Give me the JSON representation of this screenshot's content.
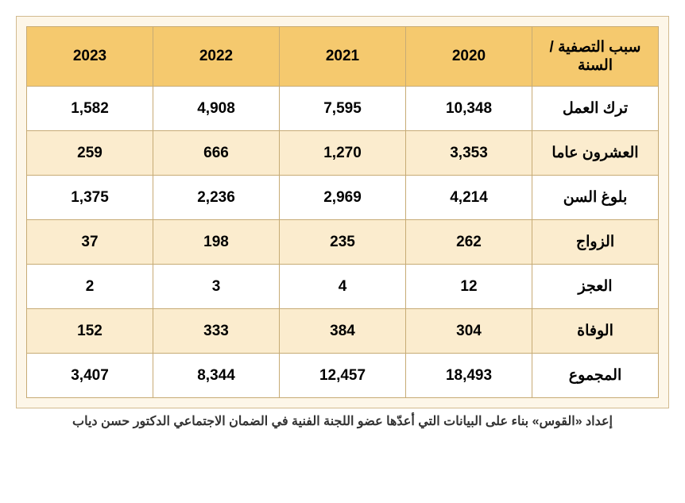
{
  "table": {
    "type": "table",
    "direction": "rtl-layout-but-columns-ltr",
    "header_bg": "#f5c96e",
    "row_bg": "#ffffff",
    "row_alt_bg": "#fbecce",
    "border_color": "#c7ab75",
    "container_bg": "#fdf6e8",
    "font_size": 19,
    "header_font_size": 19,
    "columns": [
      "2023",
      "2022",
      "2021",
      "2020",
      "سبب التصفية / السنة"
    ],
    "rows": [
      {
        "c0": "1,582",
        "c1": "4,908",
        "c2": "7,595",
        "c3": "10,348",
        "label": "ترك العمل"
      },
      {
        "c0": "259",
        "c1": "666",
        "c2": "1,270",
        "c3": "3,353",
        "label": "العشرون عاما"
      },
      {
        "c0": "1,375",
        "c1": "2,236",
        "c2": "2,969",
        "c3": "4,214",
        "label": "بلوغ السن"
      },
      {
        "c0": "37",
        "c1": "198",
        "c2": "235",
        "c3": "262",
        "label": "الزواج"
      },
      {
        "c0": "2",
        "c1": "3",
        "c2": "4",
        "c3": "12",
        "label": "العجز"
      },
      {
        "c0": "152",
        "c1": "333",
        "c2": "384",
        "c3": "304",
        "label": "الوفاة"
      },
      {
        "c0": "3,407",
        "c1": "8,344",
        "c2": "12,457",
        "c3": "18,493",
        "label": "المجموع"
      }
    ]
  },
  "caption": "إعداد «القوس» بناء على البيانات التي أعدّها عضو اللجنة الفنية في الضمان الاجتماعي الدكتور حسن دياب"
}
